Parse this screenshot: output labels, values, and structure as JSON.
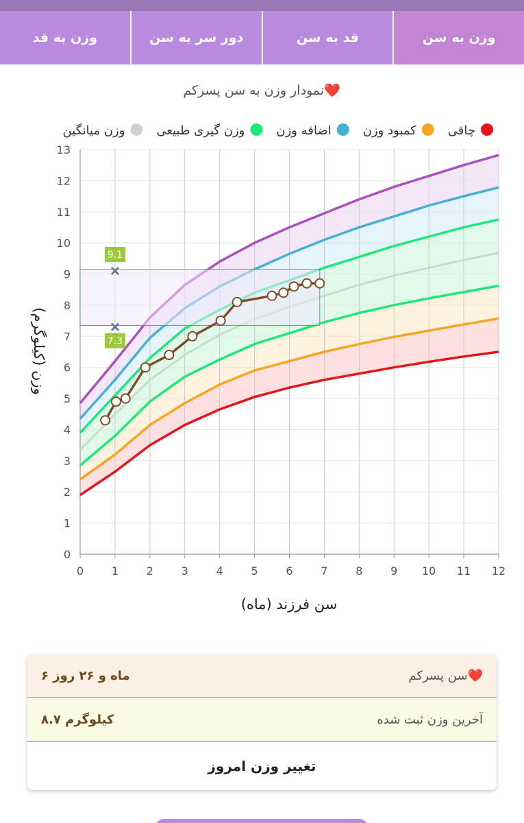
{
  "tabs": [
    {
      "label": "وزن به سن",
      "active": true
    },
    {
      "label": "قد به سن",
      "active": false
    },
    {
      "label": "دور سر به سن",
      "active": false
    },
    {
      "label": "وزن به قد",
      "active": false
    }
  ],
  "info": {
    "age_label": "سن پسرکم❤️",
    "age_value": "۶ ماه و ۲۶ روز",
    "weight_label": "آخرین وزن ثبت شده",
    "weight_value": "۸.۷ کیلوگرم",
    "action": "تغییر وزن امروز"
  },
  "chart_data": {
    "type": "line",
    "title": "نمودار وزن به سن پسرکم❤️",
    "xlabel": "سن فرزند (ماه)",
    "ylabel": "وزن (کیلوگرم)",
    "xlim": [
      0,
      12
    ],
    "ylim": [
      0,
      13
    ],
    "x_ticks": [
      "0",
      "1",
      "2",
      "3",
      "4",
      "5",
      "6",
      "7",
      "8",
      "9",
      "10",
      "11",
      "12"
    ],
    "y_ticks": [
      "0",
      "1",
      "2",
      "3",
      "4",
      "5",
      "6",
      "7",
      "8",
      "9",
      "10",
      "11",
      "12",
      "13"
    ],
    "grid": true,
    "legend": [
      {
        "name": "چاقی",
        "color": "#e8141b"
      },
      {
        "name": "کمبود وزن",
        "color": "#f5a623"
      },
      {
        "name": "اضافه وزن",
        "color": "#45b0d0"
      },
      {
        "name": "وزن گیری طبیعی",
        "color": "#1fe87a"
      },
      {
        "name": "وزن میانگین",
        "color": "#d0d0d0"
      }
    ],
    "x": [
      0,
      1,
      2,
      3,
      4,
      5,
      6,
      7,
      8,
      9,
      10,
      11,
      12
    ],
    "curves": [
      {
        "color": "#e8141b",
        "values": [
          1.9,
          2.65,
          3.5,
          4.15,
          4.65,
          5.05,
          5.35,
          5.6,
          5.8,
          6.0,
          6.18,
          6.35,
          6.5
        ]
      },
      {
        "color": "#f5a623",
        "values": [
          2.4,
          3.2,
          4.15,
          4.85,
          5.45,
          5.9,
          6.2,
          6.5,
          6.75,
          6.98,
          7.18,
          7.38,
          7.57
        ]
      },
      {
        "color": "#1fe87a",
        "values": [
          2.85,
          3.8,
          4.9,
          5.7,
          6.25,
          6.75,
          7.1,
          7.45,
          7.75,
          8.0,
          8.22,
          8.42,
          8.62
        ]
      },
      {
        "color": "#c8dcc8",
        "values": [
          3.35,
          4.5,
          5.6,
          6.4,
          7.05,
          7.55,
          7.95,
          8.3,
          8.65,
          8.95,
          9.2,
          9.45,
          9.68
        ]
      },
      {
        "color": "#1fe87a",
        "values": [
          3.9,
          5.1,
          6.3,
          7.25,
          7.85,
          8.4,
          8.8,
          9.2,
          9.55,
          9.9,
          10.2,
          10.5,
          10.75
        ]
      },
      {
        "color": "#45b0d0",
        "values": [
          4.35,
          5.6,
          6.95,
          7.9,
          8.6,
          9.15,
          9.65,
          10.1,
          10.5,
          10.85,
          11.2,
          11.5,
          11.78
        ]
      },
      {
        "color": "#ab4fbd",
        "values": [
          4.85,
          6.2,
          7.6,
          8.65,
          9.4,
          10.0,
          10.5,
          10.95,
          11.4,
          11.8,
          12.15,
          12.5,
          12.82
        ]
      }
    ],
    "bands": [
      {
        "color": "#ffd6d6",
        "from": 0,
        "to": 1
      },
      {
        "color": "#ffeed3",
        "from": 1,
        "to": 2
      },
      {
        "color": "#d6f7e4",
        "from": 2,
        "to": 4
      },
      {
        "color": "#dbf0f8",
        "from": 4,
        "to": 5
      },
      {
        "color": "#f0e0f5",
        "from": 5,
        "to": 6
      }
    ],
    "series": [
      {
        "color": "#7b4f2a",
        "x": [
          0.72,
          1.03,
          1.3,
          1.87,
          2.55,
          3.22,
          4.03,
          4.5,
          5.5,
          5.83,
          6.13,
          6.5,
          6.87
        ],
        "y": [
          4.3,
          4.9,
          5.0,
          6.0,
          6.4,
          7.0,
          7.5,
          8.1,
          8.3,
          8.4,
          8.6,
          8.7,
          8.7
        ]
      }
    ],
    "range_box": {
      "x": [
        0,
        6.87
      ],
      "y": [
        7.35,
        9.15
      ]
    },
    "annotations": [
      {
        "x": 1,
        "y": 9.1,
        "label": "9.1"
      },
      {
        "x": 1,
        "y": 7.3,
        "label": "7.3"
      }
    ]
  }
}
